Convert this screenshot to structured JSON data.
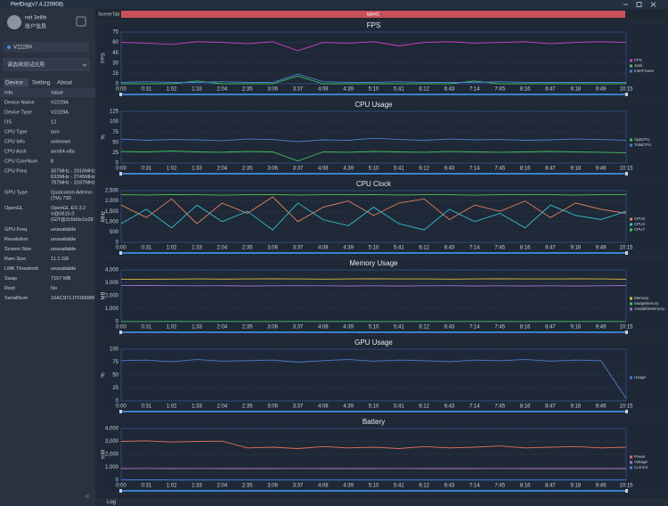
{
  "window": {
    "title": "PerfDog(v7.4.220908)"
  },
  "account": {
    "name": "net 3elife",
    "info": "账户信息"
  },
  "device": "V2229A",
  "app_select": "请选择测试应用",
  "tabs": [
    "Device",
    "Setting",
    "About"
  ],
  "table": {
    "header": [
      "Info",
      "Value"
    ],
    "rows": [
      [
        "Device Name",
        [
          "V2229A"
        ]
      ],
      [
        "Device Type",
        [
          "V2229A"
        ]
      ],
      [
        "OS",
        [
          "12"
        ]
      ],
      [
        "CPU Type",
        [
          "taro"
        ]
      ],
      [
        "CPU Info",
        [
          "unknown"
        ]
      ],
      [
        "CPU Arch",
        [
          "arm64-v8a"
        ]
      ],
      [
        "CPU CoreNum",
        [
          "8"
        ]
      ],
      [
        "CPU Freq",
        [
          "307MHz - 2016MHz",
          "633MHz - 2745MHz",
          "787MHz - 3187MHz"
        ]
      ],
      [
        "GPU Type",
        [
          "Qualcomm Adreno",
          "(TM) 730"
        ]
      ],
      [
        "OpenGL",
        [
          "OpenGL ES 3.2",
          "V@0615.0",
          "(GIT@2c5b0e1e28"
        ]
      ],
      [
        "GPU Freq",
        [
          "unavailable"
        ]
      ],
      [
        "Resolution",
        [
          "unavailable"
        ]
      ],
      [
        "Screen Size",
        [
          "unavailable"
        ]
      ],
      [
        "Ram Size",
        [
          "11.1 GB"
        ]
      ],
      [
        "LMK Threshold",
        [
          "unavailable"
        ]
      ],
      [
        "Swap",
        [
          "7167 MB"
        ]
      ],
      [
        "Root",
        [
          "No"
        ]
      ],
      [
        "SerialNum",
        [
          "10AC971JTF0008B"
        ]
      ]
    ]
  },
  "scene": {
    "tab": "SceneTab",
    "label": "label1"
  },
  "log": "Log",
  "chart_data": [
    {
      "type": "line",
      "title": "FPS",
      "ylabel": "FPS",
      "ylim": [
        0,
        75
      ],
      "yticks": [
        0,
        15,
        30,
        45,
        60,
        75
      ],
      "grid": true,
      "categories": [
        "0:00",
        "0:31",
        "1:02",
        "1:33",
        "2:04",
        "2:35",
        "3:06",
        "3:37",
        "4:08",
        "4:39",
        "5:10",
        "5:41",
        "6:12",
        "6:43",
        "7:14",
        "7:45",
        "8:16",
        "8:47",
        "9:18",
        "9:49",
        "10:15"
      ],
      "series": [
        {
          "name": "FPS",
          "color": "#d040d0",
          "values": [
            60,
            59,
            57,
            61,
            60,
            58,
            61,
            48,
            60,
            59,
            61,
            55,
            60,
            61,
            59,
            60,
            61,
            58,
            60,
            61,
            60
          ]
        },
        {
          "name": "Jank",
          "color": "#40c060",
          "values": [
            0,
            0,
            0,
            4,
            0,
            0,
            0,
            11,
            0,
            0,
            0,
            0,
            0,
            0,
            4,
            0,
            0,
            0,
            0,
            0,
            0
          ]
        },
        {
          "name": "InterFrame",
          "color": "#4a7fd0",
          "values": [
            2,
            3,
            2,
            2,
            3,
            2,
            2,
            14,
            3,
            2,
            2,
            3,
            2,
            2,
            2,
            3,
            2,
            2,
            2,
            2,
            2
          ]
        }
      ]
    },
    {
      "type": "line",
      "title": "CPU Usage",
      "ylabel": "%",
      "ylim": [
        0,
        125
      ],
      "yticks": [
        0,
        25,
        50,
        75,
        100,
        125
      ],
      "grid": true,
      "categories": [
        "0:00",
        "0:31",
        "1:02",
        "1:33",
        "2:04",
        "2:35",
        "3:06",
        "3:37",
        "4:08",
        "4:39",
        "5:10",
        "5:41",
        "6:12",
        "6:43",
        "7:14",
        "7:45",
        "8:16",
        "8:47",
        "9:18",
        "9:49",
        "10:15"
      ],
      "series": [
        {
          "name": "AppCPU",
          "color": "#40c060",
          "values": [
            28,
            27,
            29,
            27,
            26,
            28,
            27,
            5,
            27,
            26,
            28,
            27,
            26,
            28,
            27,
            26,
            27,
            28,
            27,
            26,
            25
          ]
        },
        {
          "name": "TotalCPU",
          "color": "#4a7fd0",
          "values": [
            58,
            55,
            57,
            56,
            54,
            58,
            57,
            52,
            56,
            55,
            60,
            57,
            55,
            58,
            56,
            57,
            55,
            56,
            58,
            57,
            55
          ]
        }
      ]
    },
    {
      "type": "line",
      "title": "CPU Clock",
      "ylabel": "MHz",
      "ylim": [
        0,
        2500
      ],
      "yticks": [
        0,
        500,
        {
          "value": 1000,
          "label": "1,000"
        },
        {
          "value": 1500,
          "label": "1,500"
        },
        {
          "value": 2000,
          "label": "2,000"
        },
        {
          "value": 2500,
          "label": "2,500"
        }
      ],
      "grid": true,
      "categories": [
        "0:00",
        "0:31",
        "1:02",
        "1:33",
        "2:04",
        "2:35",
        "3:06",
        "3:37",
        "4:08",
        "4:39",
        "5:10",
        "5:41",
        "6:12",
        "6:43",
        "7:14",
        "7:45",
        "8:16",
        "8:47",
        "9:18",
        "9:49",
        "10:15"
      ],
      "series": [
        {
          "name": "CPU0",
          "color": "#e08060",
          "values": [
            1800,
            1200,
            2100,
            900,
            1900,
            1400,
            2200,
            1000,
            1700,
            2000,
            1300,
            1900,
            2100,
            1100,
            1800,
            1500,
            2000,
            1200,
            1900,
            1600,
            1400
          ]
        },
        {
          "name": "CPU4",
          "color": "#30c0d0",
          "values": [
            900,
            1600,
            700,
            1800,
            1000,
            1500,
            600,
            1900,
            1100,
            800,
            1700,
            900,
            600,
            1600,
            1000,
            1400,
            700,
            1800,
            1300,
            1100,
            1500
          ]
        },
        {
          "name": "CPU7",
          "color": "#50c050",
          "values": [
            2300,
            2290,
            2310,
            2300,
            2280,
            2300,
            2310,
            2290,
            2300,
            2300,
            2310,
            2290,
            2300,
            2300,
            2280,
            2300,
            2310,
            2300,
            2290,
            2300,
            2300
          ]
        }
      ]
    },
    {
      "type": "line",
      "title": "Memory Usage",
      "ylabel": "MB",
      "ylim": [
        0,
        4000
      ],
      "yticks": [
        0,
        {
          "value": 1000,
          "label": "1,000"
        },
        {
          "value": 2000,
          "label": "2,000"
        },
        {
          "value": 3000,
          "label": "3,000"
        },
        {
          "value": 4000,
          "label": "4,000"
        }
      ],
      "grid": true,
      "categories": [
        "0:00",
        "0:31",
        "1:02",
        "1:33",
        "2:04",
        "2:35",
        "3:06",
        "3:37",
        "4:08",
        "4:39",
        "5:10",
        "5:41",
        "6:12",
        "6:43",
        "7:14",
        "7:45",
        "8:16",
        "8:47",
        "9:18",
        "9:49",
        "10:15"
      ],
      "series": [
        {
          "name": "Memory",
          "color": "#d8c040",
          "values": [
            3270,
            3280,
            3290,
            3300,
            3290,
            3300,
            3310,
            3300,
            3290,
            3300,
            3310,
            3300,
            3300,
            3290,
            3300,
            3310,
            3300,
            3300,
            3310,
            3300,
            3280
          ]
        },
        {
          "name": "SwapMemory",
          "color": "#40c060",
          "values": [
            10,
            10,
            12,
            10,
            11,
            10,
            10,
            12,
            10,
            11,
            10,
            10,
            12,
            10,
            11,
            10,
            10,
            12,
            10,
            11,
            10
          ]
        },
        {
          "name": "AvailableMemory",
          "color": "#a070d0",
          "values": [
            2800,
            2790,
            2780,
            2770,
            2780,
            2760,
            2770,
            2780,
            2770,
            2760,
            2770,
            2760,
            2770,
            2780,
            2760,
            2770,
            2760,
            2770,
            2760,
            2770,
            2790
          ]
        }
      ]
    },
    {
      "type": "line",
      "title": "GPU Usage",
      "ylabel": "%",
      "ylim": [
        0,
        100
      ],
      "yticks": [
        0,
        25,
        50,
        75,
        100
      ],
      "grid": true,
      "categories": [
        "0:00",
        "0:31",
        "1:02",
        "1:33",
        "2:04",
        "2:35",
        "3:06",
        "3:37",
        "4:08",
        "4:39",
        "5:10",
        "5:41",
        "6:12",
        "6:43",
        "7:14",
        "7:45",
        "8:16",
        "8:47",
        "9:18",
        "9:49",
        "10:15"
      ],
      "series": [
        {
          "name": "Usage",
          "color": "#4a7fd0",
          "values": [
            78,
            79,
            76,
            80,
            77,
            78,
            79,
            75,
            78,
            80,
            77,
            79,
            78,
            76,
            79,
            78,
            80,
            77,
            79,
            78,
            5
          ]
        }
      ]
    },
    {
      "type": "line",
      "title": "Battery",
      "ylabel": "mW",
      "ylim": [
        0,
        4000
      ],
      "yticks": [
        0,
        {
          "value": 1000,
          "label": "1,000"
        },
        {
          "value": 2000,
          "label": "2,000"
        },
        {
          "value": 3000,
          "label": "3,000"
        },
        {
          "value": 4000,
          "label": "4,000"
        }
      ],
      "grid": true,
      "categories": [
        "0:00",
        "0:31",
        "1:02",
        "1:33",
        "2:04",
        "2:35",
        "3:06",
        "3:37",
        "4:08",
        "4:39",
        "5:10",
        "5:41",
        "6:12",
        "6:43",
        "7:14",
        "7:45",
        "8:16",
        "8:47",
        "9:18",
        "9:49",
        "10:15"
      ],
      "series": [
        {
          "name": "Power",
          "color": "#e07060",
          "values": [
            3000,
            3050,
            2950,
            3000,
            3020,
            2500,
            2550,
            2450,
            2600,
            2500,
            2550,
            2450,
            2600,
            2500,
            2550,
            2650,
            2500,
            2550,
            2600,
            2500,
            2550
          ]
        },
        {
          "name": "Voltage",
          "color": "#b070c0",
          "values": [
            900,
            910,
            900,
            905,
            900,
            895,
            900,
            905,
            900,
            895,
            900,
            905,
            900,
            895,
            900,
            905,
            900,
            895,
            900,
            900,
            900
          ]
        },
        {
          "name": "Current",
          "color": "#4080e0",
          "values": [
            20,
            25,
            20,
            22,
            20,
            18,
            20,
            24,
            20,
            18,
            20,
            22,
            20,
            18,
            20,
            22,
            20,
            18,
            20,
            20,
            20
          ]
        }
      ]
    }
  ]
}
